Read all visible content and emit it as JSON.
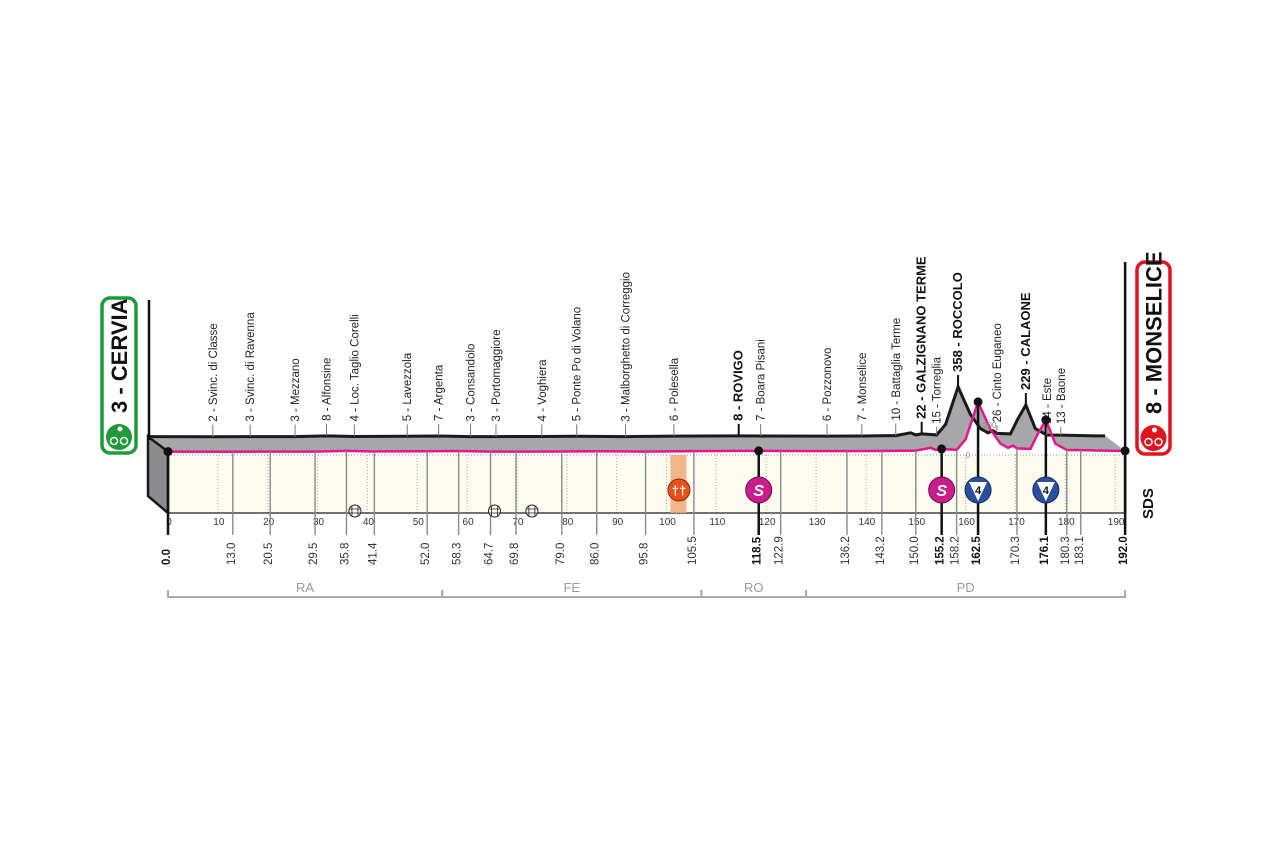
{
  "chart_data": {
    "type": "area",
    "title": "",
    "xlabel": "",
    "ylabel": "",
    "xlim": [
      0,
      192
    ],
    "x_ticks": [
      0,
      10,
      20,
      30,
      40,
      50,
      60,
      70,
      80,
      90,
      100,
      110,
      120,
      130,
      140,
      150,
      160,
      170,
      180,
      190
    ],
    "y_ticks": [
      0,
      200
    ],
    "start": {
      "label": "3 - CERVIA",
      "color": "#1f9a3a",
      "icon": "bicycle-icon"
    },
    "finish": {
      "label": "8 - MONSELICE",
      "color": "#e0141e",
      "icon": "bicycle-icon"
    },
    "profile": [
      [
        0,
        3
      ],
      [
        13,
        2
      ],
      [
        20.5,
        3
      ],
      [
        29.5,
        3
      ],
      [
        35.8,
        8
      ],
      [
        41.4,
        4
      ],
      [
        52,
        5
      ],
      [
        58.3,
        7
      ],
      [
        64.7,
        3
      ],
      [
        69.8,
        3
      ],
      [
        79,
        4
      ],
      [
        86,
        5
      ],
      [
        95.8,
        3
      ],
      [
        105.5,
        6
      ],
      [
        118.5,
        8
      ],
      [
        122.9,
        7
      ],
      [
        136.2,
        6
      ],
      [
        143.2,
        7
      ],
      [
        150,
        10
      ],
      [
        153,
        30
      ],
      [
        154,
        15
      ],
      [
        155.2,
        22
      ],
      [
        158.2,
        15
      ],
      [
        160,
        90
      ],
      [
        162.5,
        358
      ],
      [
        165,
        160
      ],
      [
        167,
        60
      ],
      [
        168.5,
        30
      ],
      [
        169.5,
        45
      ],
      [
        170.3,
        26
      ],
      [
        173,
        22
      ],
      [
        174.5,
        130
      ],
      [
        176.1,
        229
      ],
      [
        178,
        60
      ],
      [
        180.3,
        14
      ],
      [
        183.1,
        13
      ],
      [
        190,
        8
      ],
      [
        192,
        8
      ]
    ],
    "waypoints": [
      {
        "km": "0.0",
        "bold": true
      },
      {
        "km": "13.0",
        "town": "2 - Svinc. di Classe"
      },
      {
        "km": "20.5",
        "town": "3 - Svinc. di Ravenna"
      },
      {
        "km": "29.5",
        "town": "3 - Mezzano"
      },
      {
        "km": "35.8",
        "town": "8 - Alfonsine"
      },
      {
        "km": "41.4",
        "town": "4 - Loc. Taglio Corelli"
      },
      {
        "km": "52.0",
        "town": "5 - Lavezzola"
      },
      {
        "km": "58.3",
        "town": "7 - Argenta"
      },
      {
        "km": "64.7",
        "town": "3 - Consandolo"
      },
      {
        "km": "69.8",
        "town": "3 - Portomaggiore"
      },
      {
        "km": "79.0",
        "town": "4 - Voghiera"
      },
      {
        "km": "86.0",
        "town": "5 - Ponte Po di Volano"
      },
      {
        "km": "95.8",
        "town": "3 - Malborghetto di Correggio"
      },
      {
        "km": "105.5",
        "town": "6 - Polesella"
      },
      {
        "km": "118.5",
        "town": "8 - ROVIGO",
        "bold": true
      },
      {
        "km": "122.9",
        "town": "7 - Boara Pisani"
      },
      {
        "km": "136.2",
        "town": "6 - Pozzonovo"
      },
      {
        "km": "143.2",
        "town": "7 - Monselice"
      },
      {
        "km": "150.0",
        "town": "10 - Battaglia Terme"
      },
      {
        "km": "155.2",
        "town": "22 - GALZIGNANO TERME",
        "bold": true
      },
      {
        "km": "158.2",
        "town": "15 - Torreglia"
      },
      {
        "km": "162.5",
        "town": "358 - ROCCOLO",
        "bold": true
      },
      {
        "km": "170.3",
        "town": "26 - Cinto Euganeo"
      },
      {
        "km": "176.1",
        "town": "229 - CALAONE",
        "bold": true
      },
      {
        "km": "180.3",
        "town": "14 - Este"
      },
      {
        "km": "183.1",
        "town": "13 - Baone"
      },
      {
        "km": "192.0",
        "bold": true
      }
    ],
    "markers": [
      {
        "km": 102.5,
        "type": "feed-zone",
        "icon": "fork-knife-icon",
        "color": "#e8501e"
      },
      {
        "km": 118.5,
        "type": "sprint",
        "label": "S",
        "color": "#c81e8c"
      },
      {
        "km": 155.2,
        "type": "sprint",
        "label": "S",
        "color": "#c81e8c"
      },
      {
        "km": 162.5,
        "type": "kom",
        "label": "4",
        "color": "#2a4f9e"
      },
      {
        "km": 176.1,
        "type": "kom",
        "label": "4",
        "color": "#2a4f9e"
      },
      {
        "km": 37.5,
        "type": "level-crossing",
        "icon": "railway-crossing-icon"
      },
      {
        "km": 65.5,
        "type": "level-crossing",
        "icon": "railway-crossing-icon"
      },
      {
        "km": 73,
        "type": "level-crossing",
        "icon": "railway-crossing-icon"
      }
    ],
    "provinces": [
      {
        "label": "RA",
        "from": 0,
        "to": 55
      },
      {
        "label": "FE",
        "from": 55,
        "to": 107
      },
      {
        "label": "RO",
        "from": 107,
        "to": 128
      },
      {
        "label": "PD",
        "from": 128,
        "to": 192
      }
    ],
    "colors": {
      "profile_fill": "#a7a7a9",
      "road_line": "#e6158c",
      "plot_bg": "#fbfbef",
      "outline": "#1a1a1a"
    }
  },
  "logo": "SDS"
}
